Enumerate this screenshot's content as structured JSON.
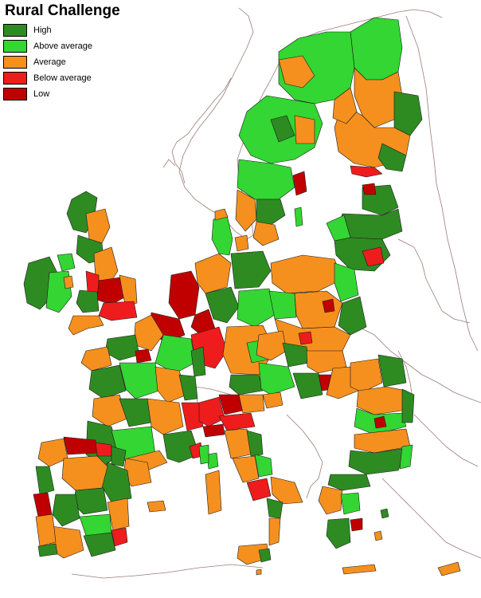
{
  "legend": {
    "title": "Rural Challenge",
    "items": [
      {
        "label": "High",
        "color": "#2e8b22"
      },
      {
        "label": "Above average",
        "color": "#33d633"
      },
      {
        "label": "Average",
        "color": "#f5901e"
      },
      {
        "label": "Below average",
        "color": "#ee1c1c"
      },
      {
        "label": "Low",
        "color": "#c00000"
      }
    ]
  },
  "map": {
    "region_border_color": "#1a1a1a",
    "outline_color": "#9b7b7b",
    "background_color": "#ffffff"
  }
}
